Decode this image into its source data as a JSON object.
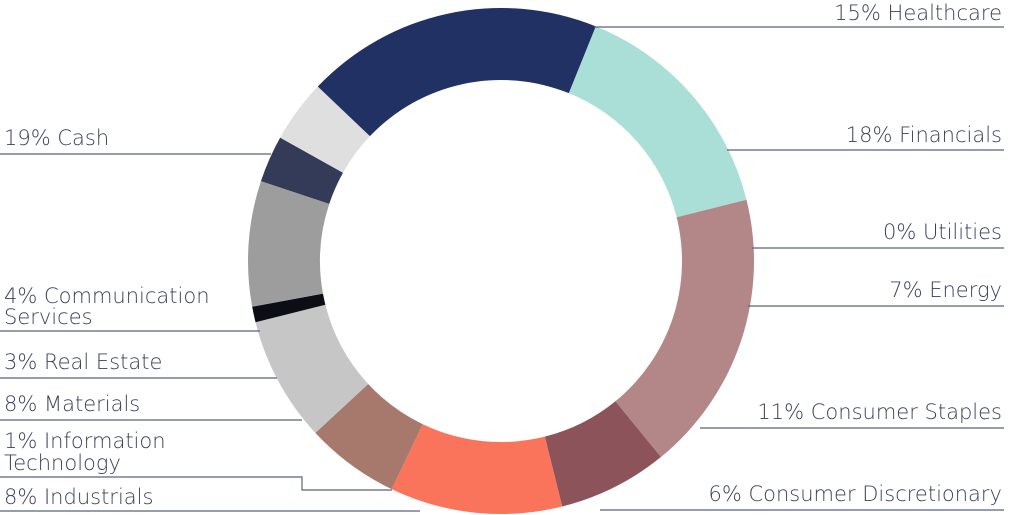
{
  "chart_data": {
    "type": "pie",
    "variant": "donut",
    "title": "",
    "unit": "%",
    "slices": [
      {
        "label": "Healthcare",
        "value": 15,
        "display": "15% Healthcare",
        "color": "#aadfd8"
      },
      {
        "label": "Financials",
        "value": 18,
        "display": "18% Financials",
        "color": "#b38787"
      },
      {
        "label": "Utilities",
        "value": 0,
        "display": "0% Utilities",
        "color": "#b38787"
      },
      {
        "label": "Energy",
        "value": 7,
        "display": "7% Energy",
        "color": "#8c545a"
      },
      {
        "label": "Consumer Staples",
        "value": 11,
        "display": "11% Consumer Staples",
        "color": "#fa745c"
      },
      {
        "label": "Consumer Discretionary",
        "value": 6,
        "display": "6% Consumer Discretionary",
        "color": "#a7796c"
      },
      {
        "label": "Industrials",
        "value": 8,
        "display": "8% Industrials",
        "color": "#c6c6c6"
      },
      {
        "label": "Information Technology",
        "value": 1,
        "display": "1% Information Technology",
        "lines": [
          "1% Information",
          "Technology"
        ],
        "color": "#0b0e14"
      },
      {
        "label": "Materials",
        "value": 8,
        "display": "8% Materials",
        "color": "#9d9d9d"
      },
      {
        "label": "Real Estate",
        "value": 3,
        "display": "3% Real Estate",
        "color": "#343b58"
      },
      {
        "label": "Communication Services",
        "value": 4,
        "display": "4% Communication Services",
        "lines": [
          "4% Communication",
          "Services"
        ],
        "color": "#dfdfdf"
      },
      {
        "label": "Cash",
        "value": 19,
        "display": "19% Cash",
        "color": "#213164"
      }
    ],
    "start_angle_deg": 22,
    "legend": "callout labels with leader lines",
    "leader_color": "#59627d",
    "label_color": "#3a3f5c"
  }
}
